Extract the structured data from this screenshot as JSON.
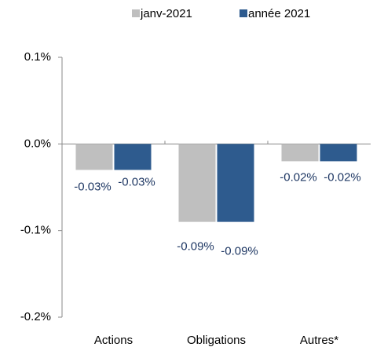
{
  "chart_data": {
    "type": "bar",
    "categories": [
      "Actions",
      "Obligations",
      "Autres*"
    ],
    "series": [
      {
        "name": "janv-2021",
        "color": "#bfbfbf",
        "values": [
          -0.03,
          -0.09,
          -0.02
        ],
        "value_labels": [
          "-0.03%",
          "-0.09%",
          "-0.02%"
        ]
      },
      {
        "name": "année 2021",
        "color": "#2e5b8e",
        "values": [
          -0.03,
          -0.09,
          -0.02
        ],
        "value_labels": [
          "-0.03%",
          "-0.09%",
          "-0.02%"
        ]
      }
    ],
    "ylim": [
      -0.2,
      0.1
    ],
    "yticks": [
      {
        "value": -0.2,
        "label": "-0.2%"
      },
      {
        "value": -0.1,
        "label": "-0.1%"
      },
      {
        "value": 0.0,
        "label": "0.0%"
      },
      {
        "value": 0.1,
        "label": "0.1%"
      }
    ],
    "legend": "top"
  }
}
